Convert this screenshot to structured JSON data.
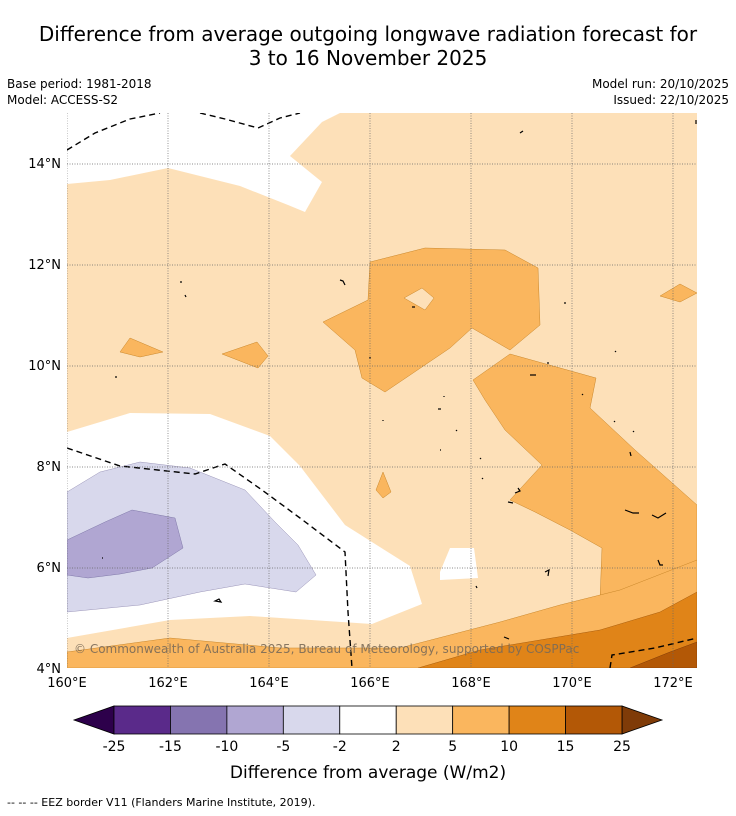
{
  "title_line1": "Difference from average outgoing longwave radiation forecast for",
  "title_line2": "3 to 16 November 2025",
  "base_period": "Base period: 1981-2018",
  "model": "Model: ACCESS-S2",
  "model_run": "Model run: 20/10/2025",
  "issued": "Issued: 22/10/2025",
  "copyright": "© Commonwealth of Australia 2025, Bureau of Meteorology, supported by COSPPac",
  "x_ticks": [
    "160°E",
    "162°E",
    "164°E",
    "166°E",
    "168°E",
    "170°E",
    "172°E"
  ],
  "y_ticks": [
    "14°N",
    "12°N",
    "10°N",
    "8°N",
    "6°N",
    "4°N"
  ],
  "colorbar": {
    "label": "Difference from average (W/m2)",
    "ticks": [
      "-25",
      "-15",
      "-10",
      "-5",
      "-2",
      "2",
      "5",
      "10",
      "15",
      "25"
    ],
    "colors": [
      "#5a2a8a",
      "#8574b0",
      "#b0a6d2",
      "#d8d8ec",
      "#ffffff",
      "#fde0b8",
      "#fab65e",
      "#e08418",
      "#b35806"
    ],
    "extend_low": "#2d004b",
    "extend_high": "#7f3b08"
  },
  "footnote": "-- -- -- EEZ border V11 (Flanders Marine Institute, 2019).",
  "region": {
    "lon_range": [
      160,
      172.5
    ],
    "lat_range": [
      4,
      15
    ]
  }
}
